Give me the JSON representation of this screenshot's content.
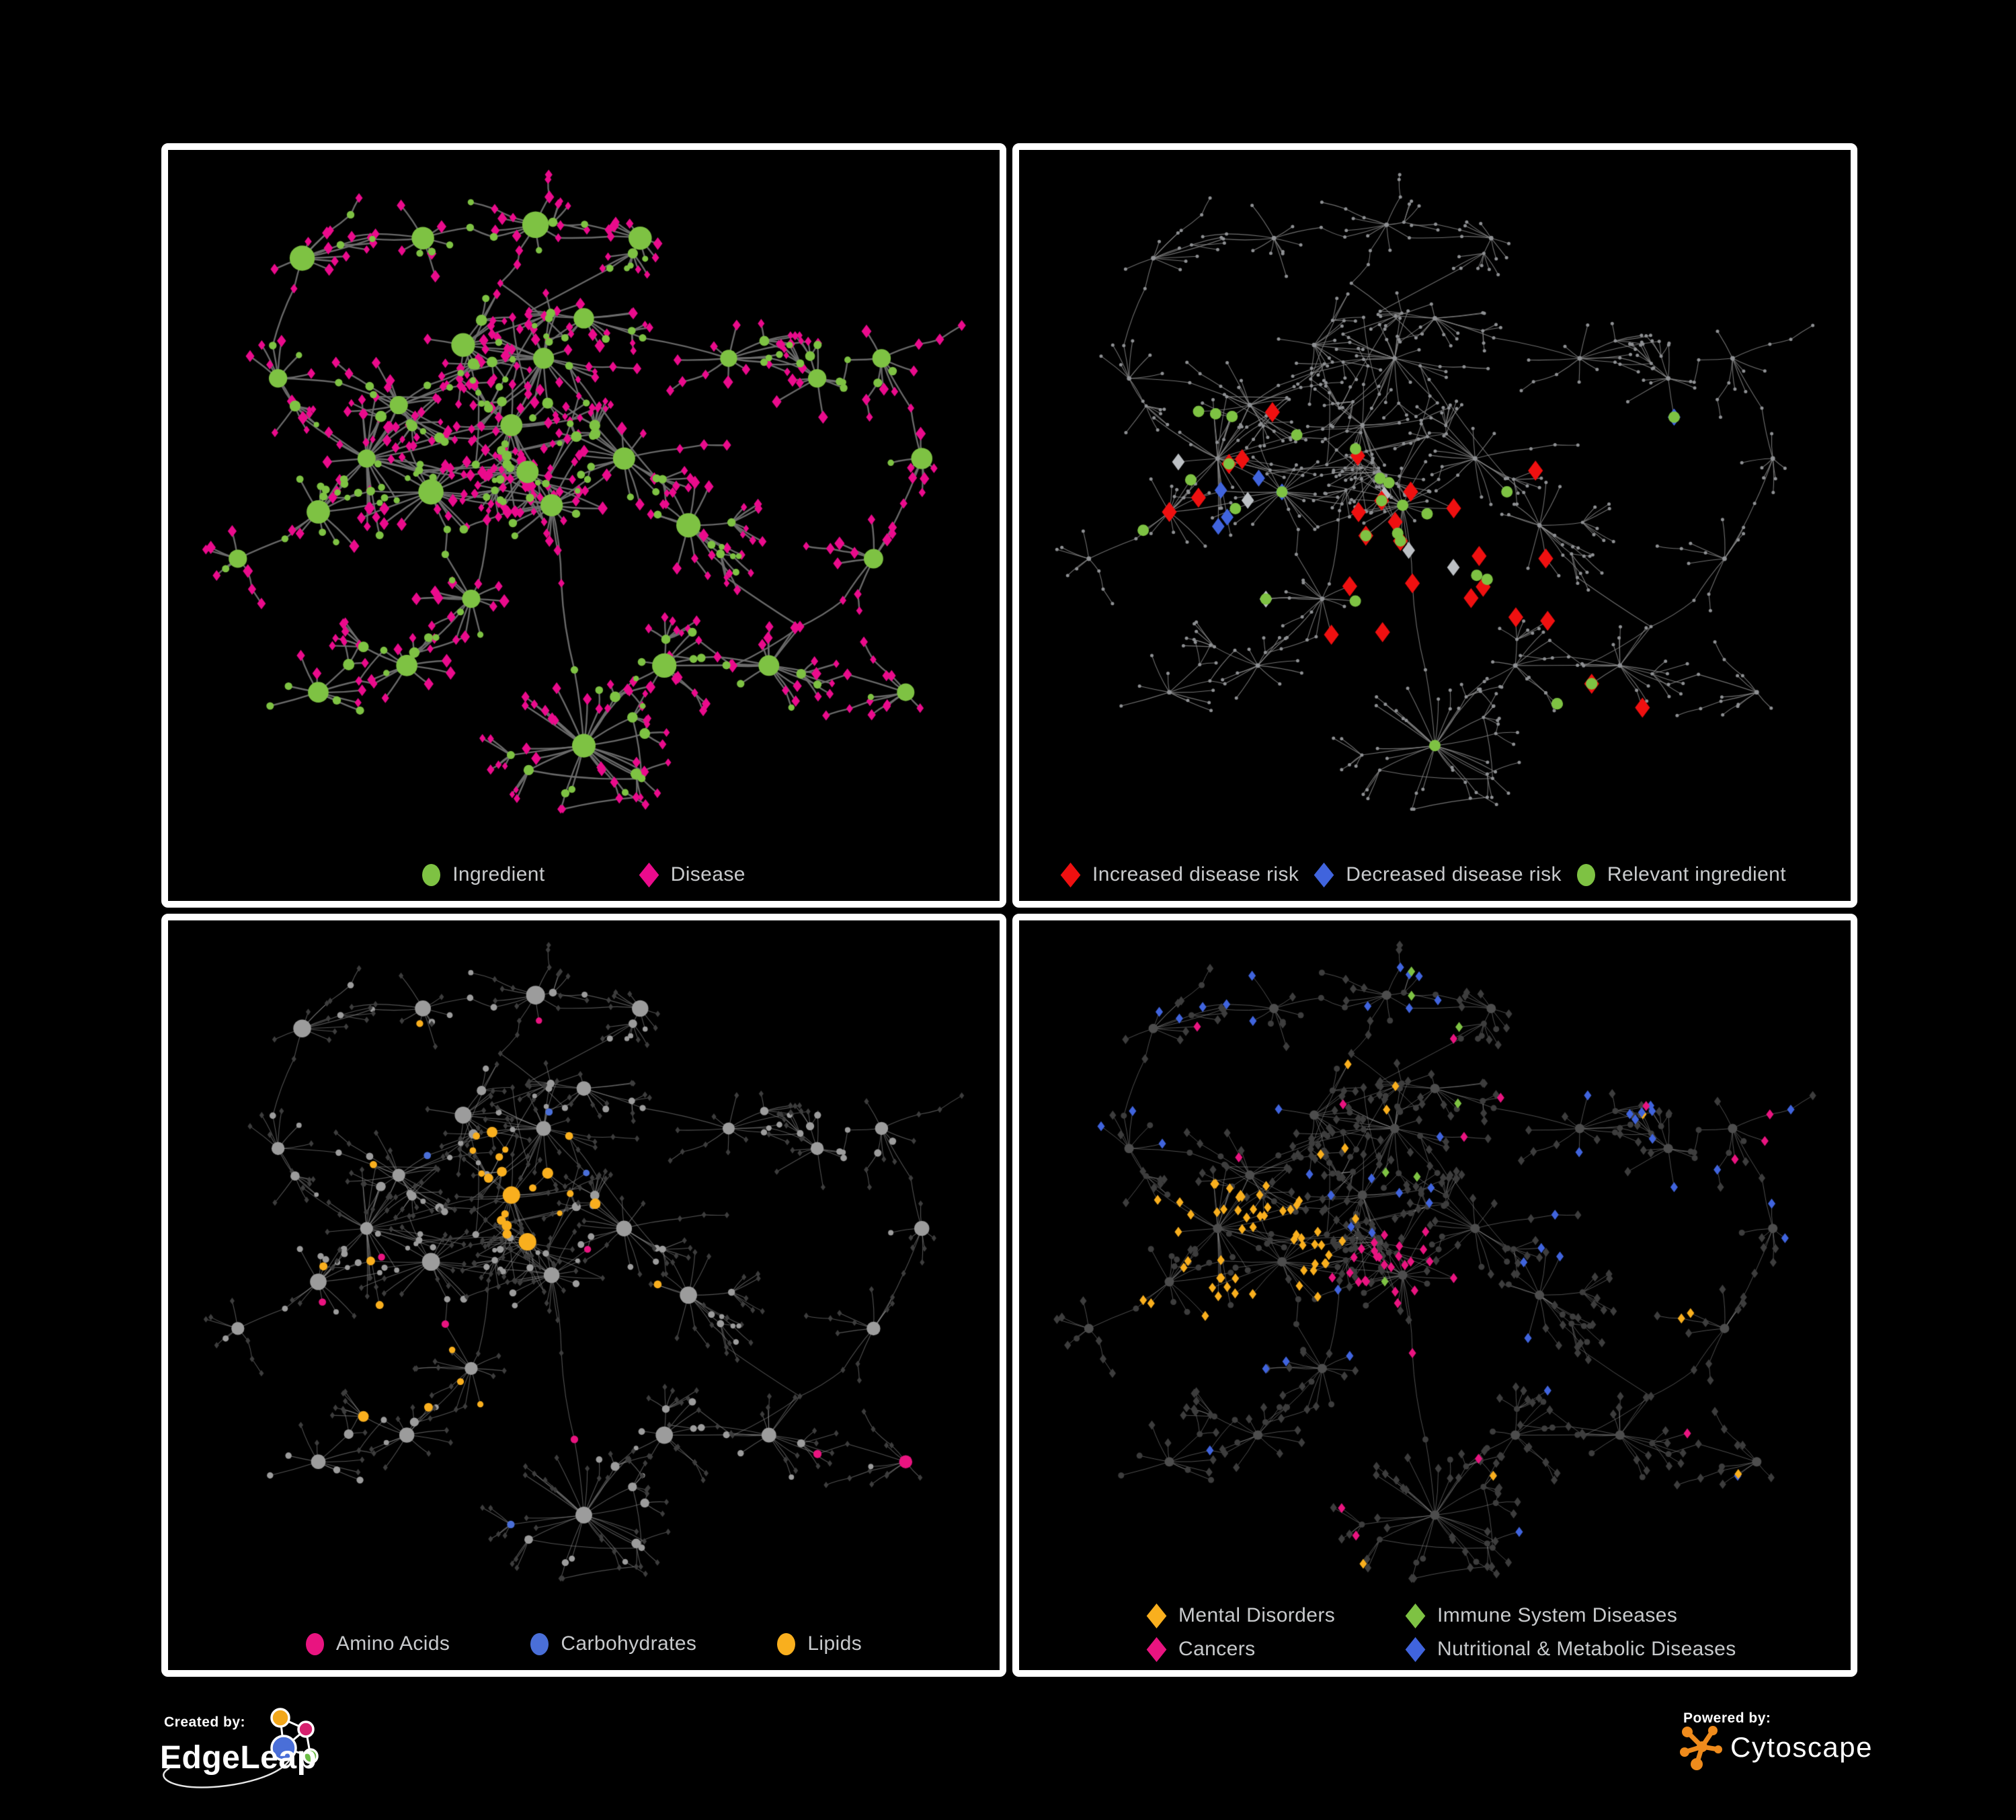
{
  "panels": [
    {
      "id": "ingredient-disease-network",
      "legend": [
        {
          "label": "Ingredient",
          "shape": "circle",
          "color": "#7ec243"
        },
        {
          "label": "Disease",
          "shape": "diamond",
          "color": "#ea0b8c"
        }
      ]
    },
    {
      "id": "disease-risk-network",
      "legend": [
        {
          "label": "Increased disease risk",
          "shape": "diamond",
          "color": "#ef1010"
        },
        {
          "label": "Decreased disease risk",
          "shape": "diamond",
          "color": "#4064dd"
        },
        {
          "label": "Relevant ingredient",
          "shape": "circle",
          "color": "#7ec243"
        }
      ]
    },
    {
      "id": "nutrient-class-network",
      "legend": [
        {
          "label": "Amino Acids",
          "shape": "circle",
          "color": "#e91480"
        },
        {
          "label": "Carbohydrates",
          "shape": "circle",
          "color": "#4a6fd8"
        },
        {
          "label": "Lipids",
          "shape": "circle",
          "color": "#f9af1e"
        }
      ]
    },
    {
      "id": "disease-class-network",
      "legend": [
        {
          "label": "Mental Disorders",
          "shape": "diamond",
          "color": "#f9af1e"
        },
        {
          "label": "Immune System Diseases",
          "shape": "diamond",
          "color": "#7ec243"
        },
        {
          "label": "Cancers",
          "shape": "diamond",
          "color": "#e91480"
        },
        {
          "label": "Nutritional & Metabolic Diseases",
          "shape": "diamond",
          "color": "#4064dd"
        }
      ]
    }
  ],
  "footer": {
    "created_by": {
      "label": "Created by:",
      "brand": "EdgeLeap"
    },
    "powered_by": {
      "label": "Powered by:",
      "brand": "Cytoscape"
    }
  },
  "network": {
    "seed": 1337,
    "colors": {
      "green": "#7ec243",
      "magenta": "#ea0b8c",
      "red": "#ef1010",
      "blue": "#4064dd",
      "grayHighlight": "#bcc0c4",
      "orange": "#f9af1e",
      "pink": "#e91480",
      "carbBlue": "#4a6fd8",
      "grayNode": "#9c9c9c",
      "darkNode": "#3d3d3d",
      "edge1": "#6f6f6f",
      "edge2": "#8c8c8c",
      "edge3": "#969696",
      "edge4": "#9e9e9e",
      "baseDot": "#8e9093",
      "legendText": "#c8cacc",
      "panelBorder": "#ffffff",
      "background": "#000000",
      "logoOrange": "#ef8b1c"
    }
  }
}
